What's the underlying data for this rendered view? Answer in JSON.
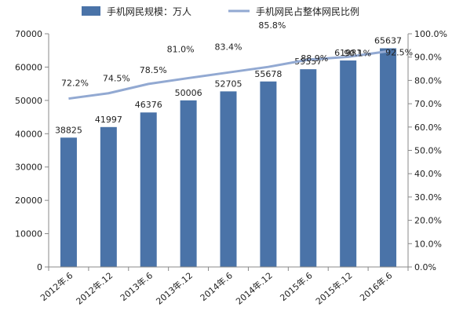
{
  "chart_data": {
    "type": "bar",
    "categories": [
      "2012年.6",
      "2012年.12",
      "2013年.6",
      "2013年.12",
      "2014年.6",
      "2014年.12",
      "2015年.6",
      "2015年.12",
      "2016年.6"
    ],
    "series": [
      {
        "name": "手机网民规模：万人",
        "type": "bar",
        "axis": "left",
        "values": [
          38825,
          41997,
          46376,
          50006,
          52705,
          55678,
          59357,
          61981,
          65637
        ],
        "labels": [
          "38825",
          "41997",
          "46376",
          "50006",
          "52705",
          "55678",
          "59357",
          "61981",
          "65637"
        ],
        "color": "#4a73a8"
      },
      {
        "name": "手机网民占整体网民比例",
        "type": "line",
        "axis": "right",
        "values": [
          72.2,
          74.5,
          78.5,
          81.0,
          83.4,
          85.8,
          88.9,
          90.1,
          92.5
        ],
        "labels": [
          "72.2%",
          "74.5%",
          "78.5%",
          "81.0%",
          "83.4%",
          "85.8%",
          "88.9%",
          "90.1%",
          "92.5%"
        ],
        "color": "#92a9d2"
      }
    ],
    "y_left": {
      "min": 0,
      "max": 70000,
      "ticks": [
        0,
        10000,
        20000,
        30000,
        40000,
        50000,
        60000,
        70000
      ],
      "tick_labels": [
        "0",
        "10000",
        "20000",
        "30000",
        "40000",
        "50000",
        "60000",
        "70000"
      ]
    },
    "y_right": {
      "min": 0,
      "max": 100,
      "ticks": [
        0,
        10,
        20,
        30,
        40,
        50,
        60,
        70,
        80,
        90,
        100
      ],
      "tick_labels": [
        "0.0%",
        "10.0%",
        "20.0%",
        "30.0%",
        "40.0%",
        "50.0%",
        "60.0%",
        "70.0%",
        "80.0%",
        "90.0%",
        "100.0%"
      ]
    },
    "grid": false,
    "legend": "top"
  }
}
